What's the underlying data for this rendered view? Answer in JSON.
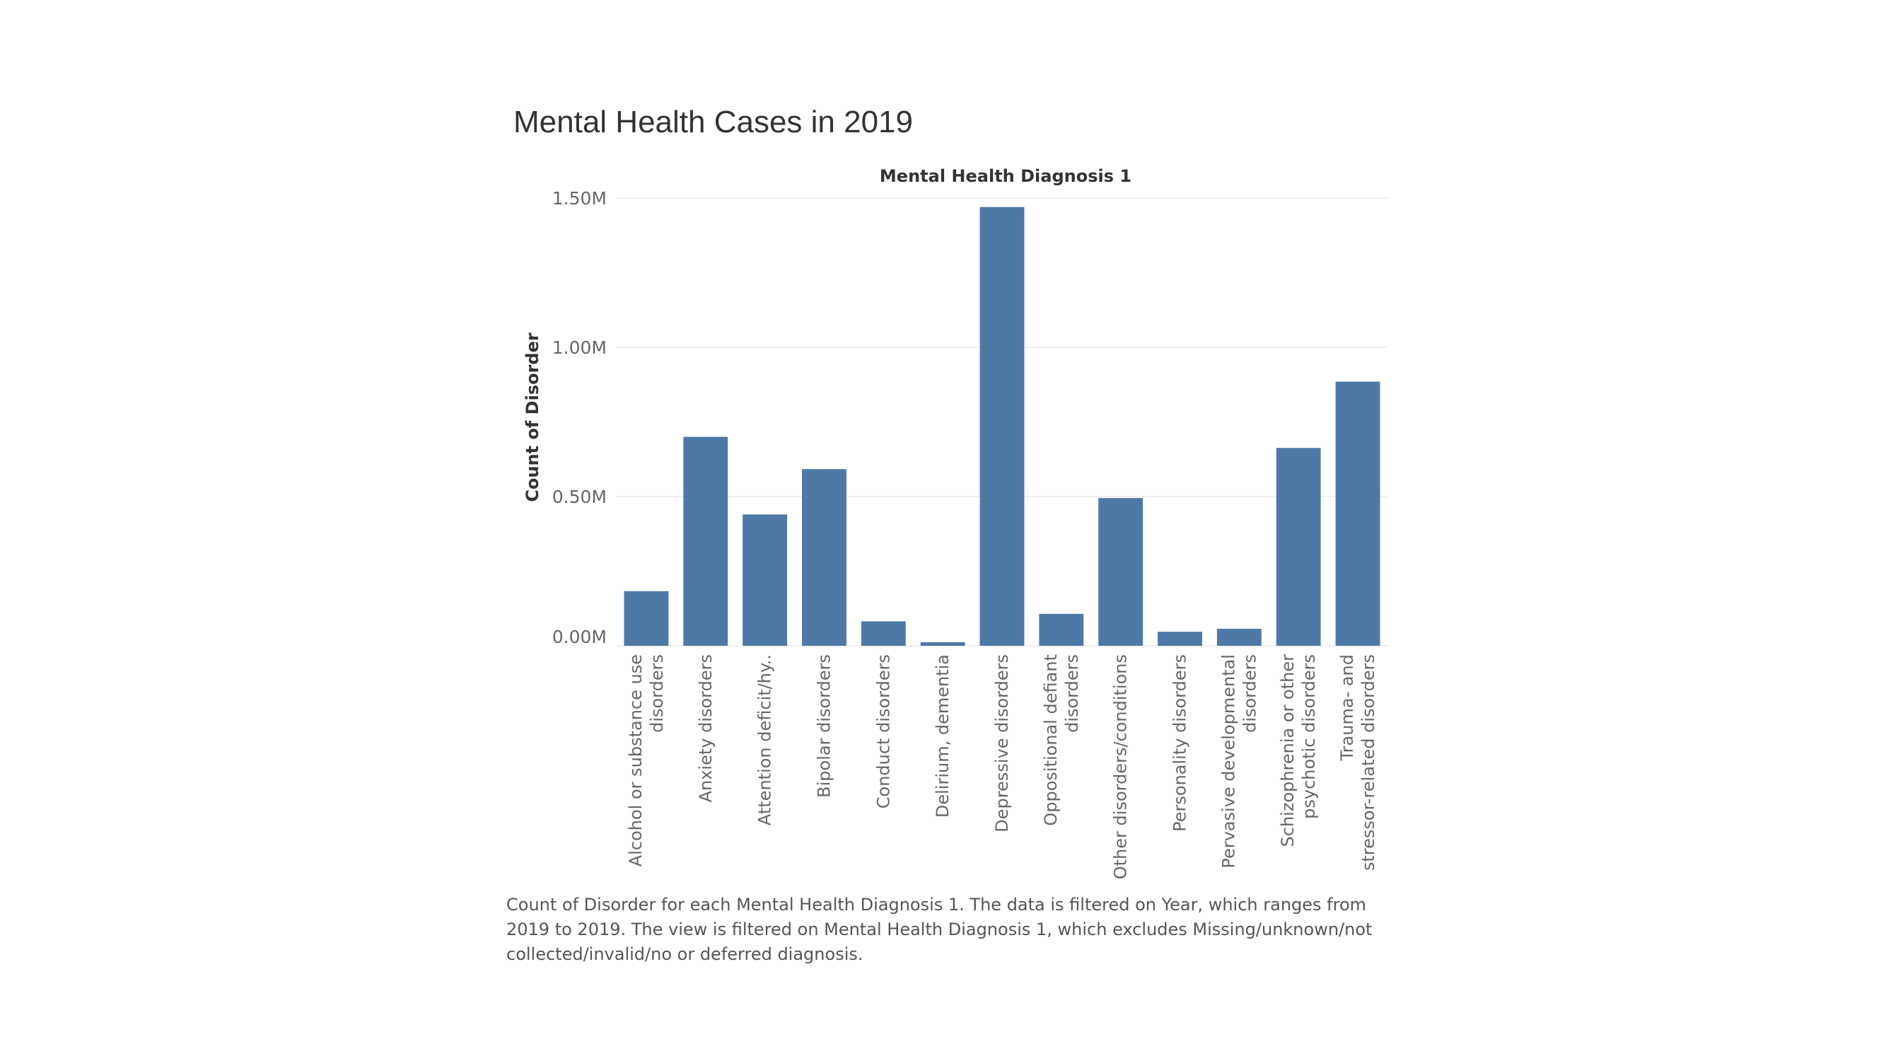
{
  "chart_data": {
    "type": "bar",
    "title": "Mental Health Cases in 2019",
    "column_header": "Mental Health Diagnosis 1",
    "ylabel": "Count of Disorder",
    "xlabel": "",
    "ylim": [
      0,
      1500000
    ],
    "yticks": [
      0,
      500000,
      1000000,
      1500000
    ],
    "ytick_labels": [
      "0.00M",
      "0.50M",
      "1.00M",
      "1.50M"
    ],
    "grid": true,
    "bar_color": "#4e79a7",
    "categories": [
      [
        "Alcohol or substance use",
        "disorders"
      ],
      [
        "Anxiety disorders"
      ],
      [
        "Attention deficit/hy.."
      ],
      [
        "Bipolar disorders"
      ],
      [
        "Conduct disorders"
      ],
      [
        "Delirium, dementia"
      ],
      [
        "Depressive disorders"
      ],
      [
        "Oppositional defiant",
        "disorders"
      ],
      [
        "Other disorders/conditions"
      ],
      [
        "Personality disorders"
      ],
      [
        "Pervasive developmental",
        "disorders"
      ],
      [
        "Schizophrenia or other",
        "psychotic disorders"
      ],
      [
        "Trauma- and",
        "stressor-related disorders"
      ]
    ],
    "values": [
      183000,
      700000,
      440000,
      592000,
      82000,
      12000,
      1470000,
      107000,
      495000,
      47000,
      57000,
      663000,
      885000
    ]
  },
  "caption": "Count of Disorder for each Mental Health Diagnosis 1. The data is filtered on Year, which ranges from 2019 to 2019. The view is filtered on Mental Health Diagnosis 1, which excludes Missing/unknown/not collected/invalid/no or deferred diagnosis."
}
